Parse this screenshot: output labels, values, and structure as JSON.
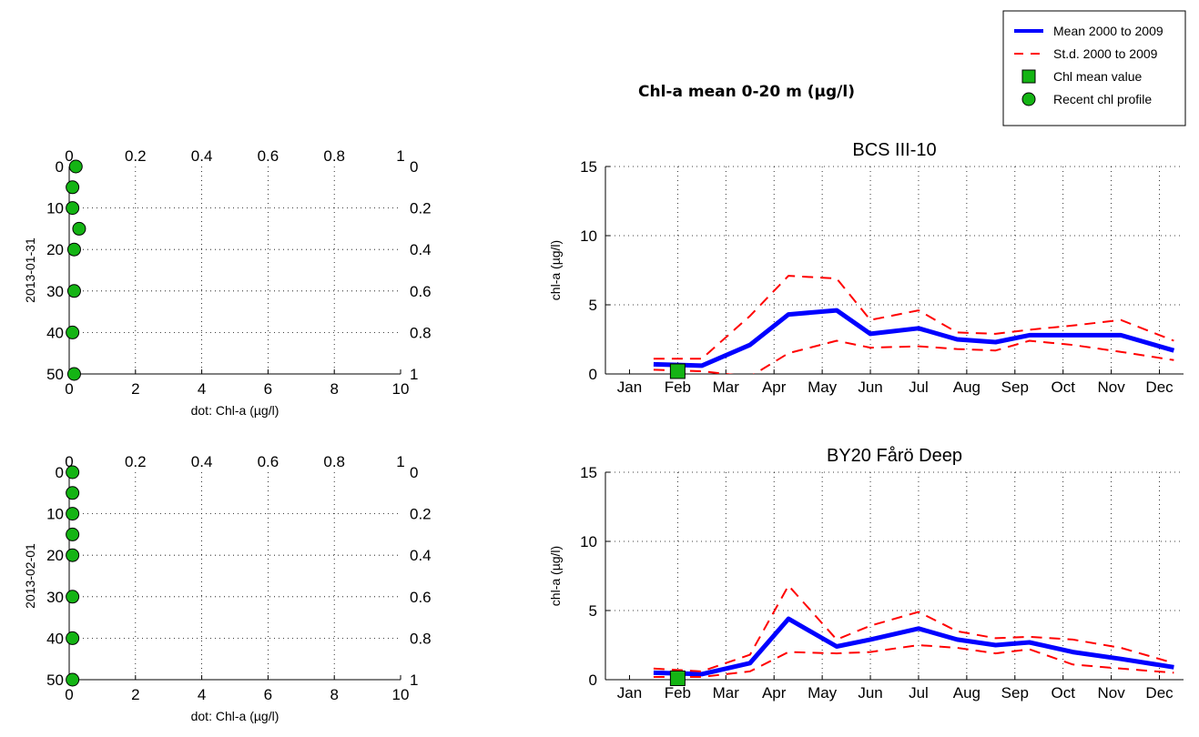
{
  "suptitle": "Chl-a mean 0-20 m (µg/l)",
  "legend": {
    "placement": "top-right",
    "entries": [
      {
        "label": "Mean 2000 to 2009",
        "style": "solid-line",
        "color": "#0000ff"
      },
      {
        "label": "St.d. 2000 to 2009",
        "style": "dashed-line",
        "color": "#ff0000"
      },
      {
        "label": "Chl mean value",
        "style": "square-marker",
        "color": "#14b414"
      },
      {
        "label": "Recent chl profile",
        "style": "circle-marker",
        "color": "#14b414"
      }
    ]
  },
  "chart_data": [
    {
      "type": "scatter",
      "ylabel": "2013-01-31",
      "xlabel": "dot: Chl-a (µg/l)",
      "xlim": [
        0,
        10
      ],
      "ylim": [
        50,
        0
      ],
      "xticks": [
        "0",
        "2",
        "4",
        "6",
        "8",
        "10"
      ],
      "yticks": [
        "0",
        "10",
        "20",
        "30",
        "40",
        "50"
      ],
      "top_xticks": [
        "0",
        "0.2",
        "0.4",
        "0.6",
        "0.8",
        "1"
      ],
      "right_yticks": [
        "0",
        "0.2",
        "0.4",
        "0.6",
        "0.8",
        "1"
      ],
      "grid": true,
      "points": [
        {
          "x": 0.2,
          "y": 0
        },
        {
          "x": 0.1,
          "y": 5
        },
        {
          "x": 0.1,
          "y": 10
        },
        {
          "x": 0.3,
          "y": 15
        },
        {
          "x": 0.15,
          "y": 20
        },
        {
          "x": 0.15,
          "y": 30
        },
        {
          "x": 0.1,
          "y": 40
        },
        {
          "x": 0.15,
          "y": 50
        }
      ],
      "marker_color": "#14b414"
    },
    {
      "type": "line",
      "title": "BCS III-10",
      "ylabel": "chl-a (µg/l)",
      "xlim": [
        0.5,
        12.5
      ],
      "ylim": [
        0,
        15
      ],
      "categories": [
        "Jan",
        "Feb",
        "Mar",
        "Apr",
        "May",
        "Jun",
        "Jul",
        "Aug",
        "Sep",
        "Oct",
        "Nov",
        "Dec"
      ],
      "yticks": [
        "0",
        "5",
        "10",
        "15"
      ],
      "grid": true,
      "series": [
        {
          "name": "Mean 2000 to 2009",
          "color": "#0000ff",
          "style": "solid",
          "x": [
            1.5,
            2.5,
            3.5,
            4.3,
            5.3,
            6.0,
            7.0,
            7.8,
            8.6,
            9.3,
            10.2,
            11.2,
            12.3
          ],
          "values": [
            0.7,
            0.6,
            2.1,
            4.3,
            4.6,
            2.9,
            3.3,
            2.5,
            2.3,
            2.8,
            2.8,
            2.8,
            1.7
          ]
        },
        {
          "name": "St.d. 2000 to 2009",
          "color": "#ff0000",
          "style": "dashed",
          "x": [
            1.5,
            2.5,
            3.5,
            4.3,
            5.3,
            6.0,
            7.0,
            7.8,
            8.6,
            9.3,
            10.2,
            11.2,
            12.3
          ],
          "values": [
            1.1,
            1.1,
            4.2,
            7.1,
            6.9,
            3.9,
            4.6,
            3.0,
            2.9,
            3.2,
            3.5,
            3.9,
            2.4
          ]
        },
        {
          "color": "#ff0000",
          "style": "dashed",
          "x": [
            1.5,
            2.5,
            3.5,
            4.3,
            5.3,
            6.0,
            7.0,
            7.8,
            8.6,
            9.3,
            10.2,
            11.2,
            12.3
          ],
          "values": [
            0.3,
            0.2,
            -0.2,
            1.5,
            2.4,
            1.9,
            2.0,
            1.8,
            1.7,
            2.4,
            2.1,
            1.6,
            1.0
          ]
        }
      ],
      "mean_marker": {
        "x": 2.0,
        "y": 0.2,
        "color": "#14b414"
      }
    },
    {
      "type": "scatter",
      "ylabel": "2013-02-01",
      "xlabel": "dot: Chl-a (µg/l)",
      "xlim": [
        0,
        10
      ],
      "ylim": [
        50,
        0
      ],
      "xticks": [
        "0",
        "2",
        "4",
        "6",
        "8",
        "10"
      ],
      "yticks": [
        "0",
        "10",
        "20",
        "30",
        "40",
        "50"
      ],
      "top_xticks": [
        "0",
        "0.2",
        "0.4",
        "0.6",
        "0.8",
        "1"
      ],
      "right_yticks": [
        "0",
        "0.2",
        "0.4",
        "0.6",
        "0.8",
        "1"
      ],
      "grid": true,
      "points": [
        {
          "x": 0.1,
          "y": 0
        },
        {
          "x": 0.1,
          "y": 5
        },
        {
          "x": 0.1,
          "y": 10
        },
        {
          "x": 0.1,
          "y": 15
        },
        {
          "x": 0.1,
          "y": 20
        },
        {
          "x": 0.1,
          "y": 30
        },
        {
          "x": 0.1,
          "y": 40
        },
        {
          "x": 0.1,
          "y": 50
        }
      ],
      "marker_color": "#14b414"
    },
    {
      "type": "line",
      "title": "BY20 Fårö Deep",
      "ylabel": "chl-a (µg/l)",
      "xlim": [
        0.5,
        12.5
      ],
      "ylim": [
        0,
        15
      ],
      "categories": [
        "Jan",
        "Feb",
        "Mar",
        "Apr",
        "May",
        "Jun",
        "Jul",
        "Aug",
        "Sep",
        "Oct",
        "Nov",
        "Dec"
      ],
      "yticks": [
        "0",
        "5",
        "10",
        "15"
      ],
      "grid": true,
      "series": [
        {
          "name": "Mean 2000 to 2009",
          "color": "#0000ff",
          "style": "solid",
          "x": [
            1.5,
            2.5,
            3.5,
            4.3,
            5.3,
            6.0,
            7.0,
            7.8,
            8.6,
            9.3,
            10.2,
            11.2,
            12.3
          ],
          "values": [
            0.5,
            0.4,
            1.2,
            4.4,
            2.4,
            2.9,
            3.7,
            2.9,
            2.5,
            2.7,
            2.0,
            1.5,
            0.9
          ]
        },
        {
          "name": "St.d. 2000 to 2009",
          "color": "#ff0000",
          "style": "dashed",
          "x": [
            1.5,
            2.5,
            3.5,
            4.3,
            5.3,
            6.0,
            7.0,
            7.8,
            8.6,
            9.3,
            10.2,
            11.2,
            12.3
          ],
          "values": [
            0.8,
            0.6,
            1.8,
            6.8,
            2.9,
            3.9,
            4.9,
            3.5,
            3.0,
            3.1,
            2.9,
            2.3,
            1.2
          ]
        },
        {
          "color": "#ff0000",
          "style": "dashed",
          "x": [
            1.5,
            2.5,
            3.5,
            4.3,
            5.3,
            6.0,
            7.0,
            7.8,
            8.6,
            9.3,
            10.2,
            11.2,
            12.3
          ],
          "values": [
            0.2,
            0.2,
            0.6,
            2.0,
            1.9,
            2.0,
            2.5,
            2.3,
            1.9,
            2.2,
            1.1,
            0.8,
            0.5
          ]
        }
      ],
      "mean_marker": {
        "x": 2.0,
        "y": 0.1,
        "color": "#14b414"
      }
    }
  ]
}
